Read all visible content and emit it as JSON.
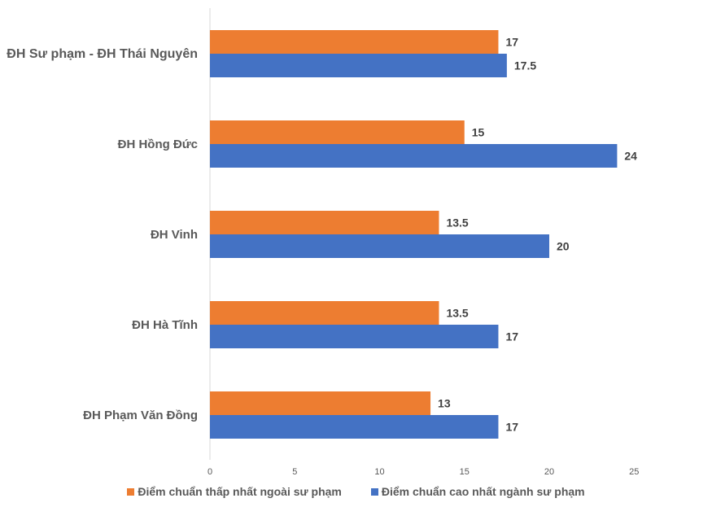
{
  "chart_data": {
    "type": "bar",
    "orientation": "horizontal",
    "categories": [
      "ĐH Sư phạm - ĐH Thái Nguyên",
      "ĐH Hồng Đức",
      "ĐH Vinh",
      "ĐH Hà Tĩnh",
      "ĐH Phạm Văn Đồng"
    ],
    "series": [
      {
        "name": "Điểm chuẩn thấp nhất ngoài sư phạm",
        "color": "#ED7D31",
        "values": [
          17,
          15,
          13.5,
          13.5,
          13
        ],
        "value_labels": [
          "17",
          "15",
          "13.5",
          "13.5",
          "13"
        ]
      },
      {
        "name": "Điểm chuẩn cao nhất ngành sư phạm",
        "color": "#4472C4",
        "values": [
          17.5,
          24,
          20,
          17,
          17
        ],
        "value_labels": [
          "17.5",
          "24",
          "20",
          "17",
          "17"
        ]
      }
    ],
    "x_ticks": [
      "0",
      "5",
      "10",
      "15",
      "20",
      "25"
    ],
    "xlim": [
      0,
      25
    ],
    "title": "",
    "xlabel": "",
    "ylabel": "",
    "grid": false,
    "legend_position": "bottom"
  }
}
